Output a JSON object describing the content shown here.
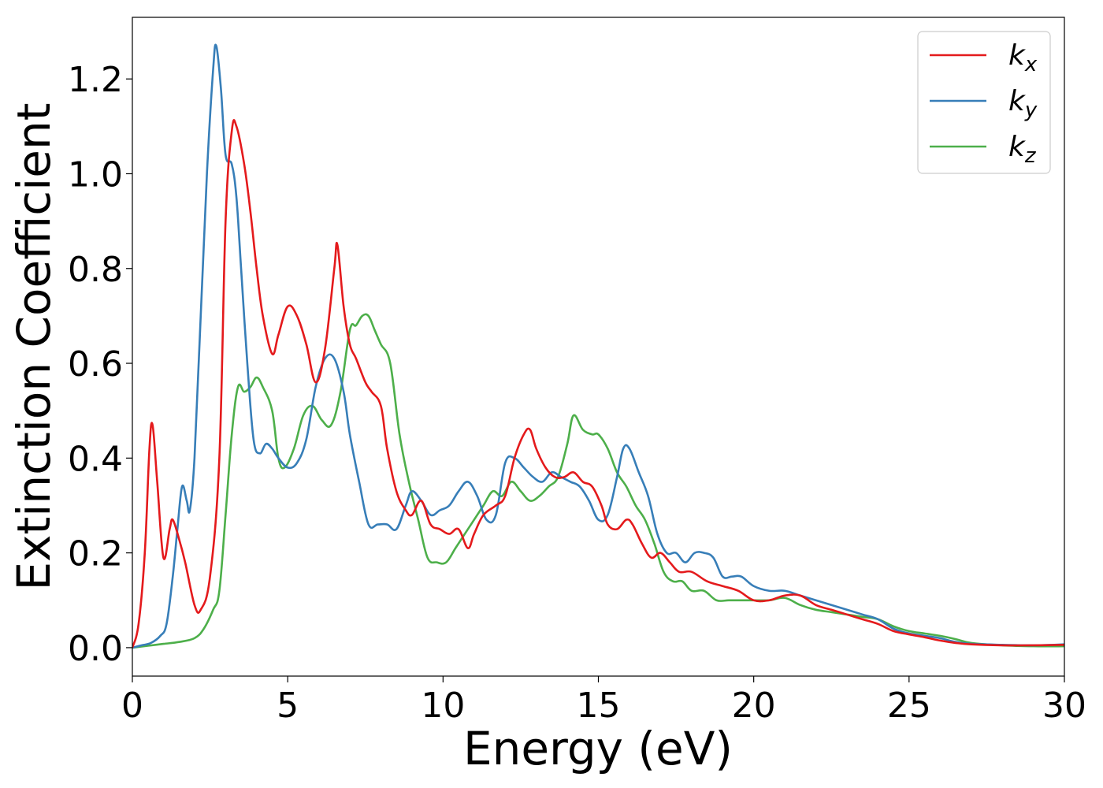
{
  "chart_data": {
    "type": "line",
    "title": "",
    "xlabel": "Energy (eV)",
    "ylabel": "Extinction Coefficient",
    "xlim": [
      0,
      30
    ],
    "ylim": [
      -0.06,
      1.33
    ],
    "xticks": [
      0,
      5,
      10,
      15,
      20,
      25,
      30
    ],
    "xtick_labels": [
      "0",
      "5",
      "10",
      "15",
      "20",
      "25",
      "30"
    ],
    "yticks": [
      0.0,
      0.2,
      0.4,
      0.6,
      0.8,
      1.0,
      1.2
    ],
    "ytick_labels": [
      "0.0",
      "0.2",
      "0.4",
      "0.6",
      "0.8",
      "1.0",
      "1.2"
    ],
    "grid": false,
    "legend_position": "top-right",
    "series": [
      {
        "name": "k_x",
        "label_base": "k",
        "label_sub": "x",
        "color": "#e41a1c",
        "x": [
          0,
          0.2,
          0.4,
          0.55,
          0.65,
          0.8,
          1.0,
          1.2,
          1.3,
          1.5,
          1.7,
          2.0,
          2.2,
          2.5,
          2.8,
          3.0,
          3.2,
          3.35,
          3.6,
          3.8,
          4.0,
          4.2,
          4.5,
          4.7,
          5.0,
          5.3,
          5.6,
          5.9,
          6.2,
          6.5,
          6.6,
          6.8,
          7.0,
          7.2,
          7.5,
          7.7,
          8.0,
          8.2,
          8.5,
          8.8,
          9.0,
          9.3,
          9.6,
          9.9,
          10.2,
          10.5,
          10.8,
          11.0,
          11.3,
          11.7,
          12.0,
          12.3,
          12.6,
          12.8,
          13.0,
          13.3,
          13.6,
          13.9,
          14.2,
          14.5,
          14.8,
          15.1,
          15.3,
          15.6,
          15.9,
          16.1,
          16.4,
          16.7,
          17.0,
          17.3,
          17.6,
          18.0,
          18.5,
          19.0,
          19.5,
          20.0,
          20.5,
          21.0,
          21.5,
          22.0,
          22.5,
          23.0,
          23.5,
          24.0,
          24.5,
          25.0,
          25.5,
          26.0,
          26.5,
          27.0,
          28.0,
          29.0,
          30.0
        ],
        "values": [
          0.0,
          0.05,
          0.2,
          0.42,
          0.47,
          0.35,
          0.19,
          0.25,
          0.27,
          0.23,
          0.18,
          0.09,
          0.08,
          0.15,
          0.4,
          0.9,
          1.09,
          1.1,
          1.02,
          0.92,
          0.8,
          0.7,
          0.62,
          0.66,
          0.72,
          0.7,
          0.64,
          0.56,
          0.63,
          0.8,
          0.85,
          0.72,
          0.64,
          0.61,
          0.56,
          0.54,
          0.51,
          0.42,
          0.33,
          0.29,
          0.28,
          0.31,
          0.26,
          0.25,
          0.24,
          0.25,
          0.21,
          0.24,
          0.28,
          0.3,
          0.32,
          0.4,
          0.45,
          0.46,
          0.42,
          0.38,
          0.36,
          0.36,
          0.37,
          0.35,
          0.34,
          0.3,
          0.26,
          0.25,
          0.27,
          0.26,
          0.22,
          0.19,
          0.2,
          0.18,
          0.16,
          0.16,
          0.14,
          0.13,
          0.12,
          0.1,
          0.1,
          0.11,
          0.11,
          0.09,
          0.08,
          0.07,
          0.06,
          0.05,
          0.035,
          0.028,
          0.022,
          0.015,
          0.01,
          0.007,
          0.005,
          0.005,
          0.006
        ]
      },
      {
        "name": "k_y",
        "label_base": "k",
        "label_sub": "y",
        "color": "#377eb8",
        "x": [
          0,
          0.3,
          0.6,
          0.9,
          1.1,
          1.3,
          1.45,
          1.6,
          1.75,
          1.85,
          2.0,
          2.2,
          2.4,
          2.6,
          2.7,
          2.85,
          3.0,
          3.2,
          3.35,
          3.5,
          3.7,
          3.9,
          4.1,
          4.3,
          4.5,
          4.7,
          5.0,
          5.3,
          5.6,
          5.9,
          6.2,
          6.5,
          6.8,
          7.0,
          7.3,
          7.6,
          7.9,
          8.2,
          8.5,
          8.8,
          9.0,
          9.3,
          9.6,
          9.9,
          10.2,
          10.5,
          10.8,
          11.1,
          11.4,
          11.7,
          12.0,
          12.3,
          12.6,
          12.9,
          13.2,
          13.5,
          13.8,
          14.1,
          14.4,
          14.7,
          15.0,
          15.3,
          15.6,
          15.8,
          16.0,
          16.3,
          16.6,
          16.9,
          17.2,
          17.5,
          17.8,
          18.1,
          18.4,
          18.7,
          19.0,
          19.3,
          19.6,
          20.0,
          20.5,
          21.0,
          21.5,
          22.0,
          22.5,
          23.0,
          23.5,
          24.0,
          24.5,
          25.0,
          25.5,
          26.0,
          26.5,
          27.0,
          28.0,
          29.0,
          30.0
        ],
        "values": [
          0.0,
          0.005,
          0.01,
          0.025,
          0.05,
          0.15,
          0.25,
          0.34,
          0.31,
          0.29,
          0.4,
          0.7,
          1.0,
          1.22,
          1.27,
          1.18,
          1.04,
          1.02,
          0.95,
          0.8,
          0.6,
          0.44,
          0.41,
          0.43,
          0.42,
          0.4,
          0.38,
          0.39,
          0.44,
          0.55,
          0.61,
          0.61,
          0.54,
          0.45,
          0.35,
          0.26,
          0.26,
          0.26,
          0.25,
          0.3,
          0.33,
          0.31,
          0.28,
          0.29,
          0.3,
          0.33,
          0.35,
          0.32,
          0.27,
          0.28,
          0.39,
          0.4,
          0.38,
          0.36,
          0.35,
          0.37,
          0.36,
          0.35,
          0.34,
          0.31,
          0.27,
          0.28,
          0.36,
          0.42,
          0.42,
          0.37,
          0.32,
          0.24,
          0.2,
          0.2,
          0.18,
          0.2,
          0.2,
          0.19,
          0.15,
          0.15,
          0.15,
          0.13,
          0.12,
          0.12,
          0.11,
          0.1,
          0.09,
          0.08,
          0.07,
          0.06,
          0.04,
          0.03,
          0.025,
          0.02,
          0.012,
          0.008,
          0.006,
          0.005,
          0.007
        ]
      },
      {
        "name": "k_z",
        "label_base": "k",
        "label_sub": "z",
        "color": "#4daf4a",
        "x": [
          0,
          0.5,
          1.0,
          1.5,
          2.0,
          2.3,
          2.6,
          2.8,
          3.0,
          3.2,
          3.4,
          3.6,
          3.8,
          4.0,
          4.2,
          4.5,
          4.7,
          4.9,
          5.2,
          5.5,
          5.8,
          6.1,
          6.4,
          6.7,
          7.0,
          7.2,
          7.4,
          7.6,
          7.8,
          8.0,
          8.3,
          8.6,
          8.9,
          9.2,
          9.5,
          9.8,
          10.1,
          10.4,
          10.7,
          11.0,
          11.3,
          11.6,
          11.9,
          12.2,
          12.5,
          12.8,
          13.1,
          13.4,
          13.7,
          14.0,
          14.2,
          14.5,
          14.8,
          15.0,
          15.3,
          15.6,
          15.9,
          16.2,
          16.5,
          16.8,
          17.1,
          17.4,
          17.7,
          18.0,
          18.4,
          18.8,
          19.2,
          19.6,
          20.0,
          20.5,
          21.0,
          21.5,
          22.0,
          22.5,
          23.0,
          23.5,
          24.0,
          24.5,
          25.0,
          25.5,
          26.0,
          26.5,
          27.0,
          28.0,
          29.0,
          30.0
        ],
        "values": [
          0.0,
          0.004,
          0.008,
          0.012,
          0.02,
          0.04,
          0.08,
          0.12,
          0.28,
          0.45,
          0.55,
          0.54,
          0.55,
          0.57,
          0.55,
          0.5,
          0.4,
          0.38,
          0.42,
          0.49,
          0.51,
          0.48,
          0.47,
          0.54,
          0.67,
          0.68,
          0.7,
          0.7,
          0.67,
          0.64,
          0.6,
          0.45,
          0.35,
          0.27,
          0.19,
          0.18,
          0.18,
          0.21,
          0.24,
          0.27,
          0.3,
          0.33,
          0.32,
          0.35,
          0.33,
          0.31,
          0.32,
          0.34,
          0.36,
          0.43,
          0.49,
          0.46,
          0.45,
          0.45,
          0.42,
          0.37,
          0.34,
          0.3,
          0.27,
          0.22,
          0.16,
          0.14,
          0.14,
          0.12,
          0.12,
          0.1,
          0.1,
          0.1,
          0.1,
          0.1,
          0.105,
          0.09,
          0.08,
          0.075,
          0.07,
          0.065,
          0.06,
          0.045,
          0.035,
          0.03,
          0.025,
          0.018,
          0.01,
          0.005,
          0.003,
          0.003
        ]
      }
    ]
  }
}
